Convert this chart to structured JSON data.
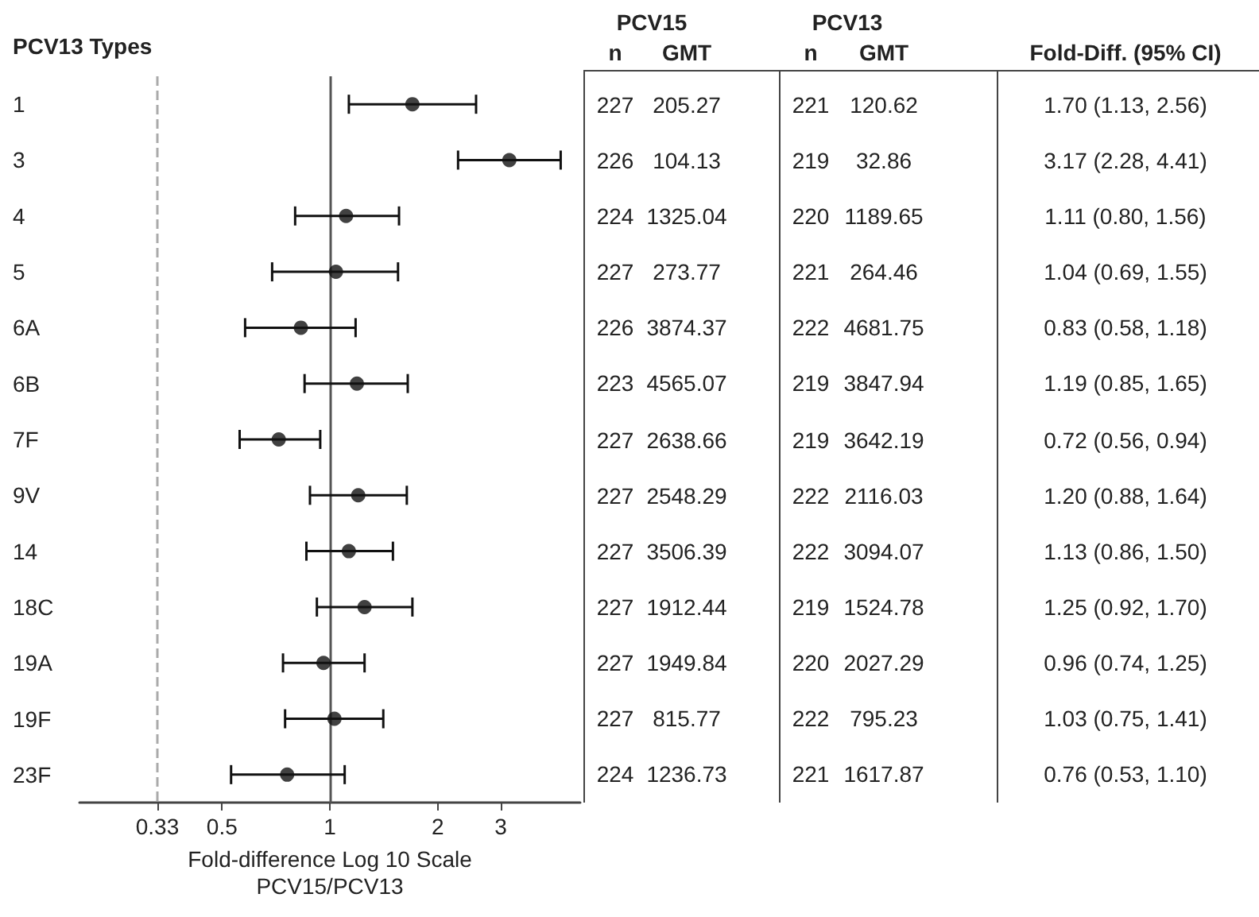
{
  "chart_data": {
    "type": "scatter",
    "orientation": "horizontal",
    "ylabel": "PCV13 Types",
    "xlabel": "Fold-difference Log 10 Scale\nPCV15/PCV13",
    "categories": [
      "1",
      "3",
      "4",
      "5",
      "6A",
      "6B",
      "7F",
      "9V",
      "14",
      "18C",
      "19A",
      "19F",
      "23F"
    ],
    "values": [
      1.7,
      3.17,
      1.11,
      1.04,
      0.83,
      1.19,
      0.72,
      1.2,
      1.13,
      1.25,
      0.96,
      1.03,
      0.76
    ],
    "errors": [
      [
        1.13,
        2.56
      ],
      [
        2.28,
        4.41
      ],
      [
        0.8,
        1.56
      ],
      [
        0.69,
        1.55
      ],
      [
        0.58,
        1.18
      ],
      [
        0.85,
        1.65
      ],
      [
        0.56,
        0.94
      ],
      [
        0.88,
        1.64
      ],
      [
        0.86,
        1.5
      ],
      [
        0.92,
        1.7
      ],
      [
        0.74,
        1.25
      ],
      [
        0.75,
        1.41
      ],
      [
        0.53,
        1.1
      ]
    ],
    "value_labels": [
      "1.70 (1.13, 2.56)",
      "3.17 (2.28, 4.41)",
      "1.11 (0.80, 1.56)",
      "1.04 (0.69, 1.55)",
      "0.83 (0.58, 1.18)",
      "1.19 (0.85, 1.65)",
      "0.72 (0.56, 0.94)",
      "1.20 (0.88, 1.64)",
      "1.13 (0.86, 1.50)",
      "1.25 (0.92, 1.70)",
      "0.96 (0.74, 1.25)",
      "1.03 (0.75, 1.41)",
      "0.76 (0.53, 1.10)"
    ],
    "color": "#111111",
    "marker": "circle",
    "log": "x",
    "grid": false,
    "xlim": [
      0.2,
      5
    ],
    "xticks": [
      0.33,
      0.5,
      1,
      2,
      3
    ],
    "ref_lines": [
      {
        "axis": "x",
        "value": 0.33,
        "color": "#aaaaaa",
        "line_style": "dashed"
      },
      {
        "axis": "x",
        "value": 1,
        "color": "#555555",
        "line_style": "solid"
      }
    ],
    "annotations": [
      "PCV15",
      "PCV13",
      "n",
      "GMT",
      "n",
      "GMT",
      "Fold-Diff. (95% CI)",
      "227",
      "205.27",
      "221",
      "120.62",
      "226",
      "104.13",
      "219",
      "32.86",
      "224",
      "1325.04",
      "220",
      "1189.65",
      "227",
      "273.77",
      "221",
      "264.46",
      "226",
      "3874.37",
      "222",
      "4681.75",
      "223",
      "4565.07",
      "219",
      "3847.94",
      "227",
      "2638.66",
      "219",
      "3642.19",
      "227",
      "2548.29",
      "222",
      "2116.03",
      "227",
      "3506.39",
      "222",
      "3094.07",
      "227",
      "1912.44",
      "219",
      "1524.78",
      "227",
      "1949.84",
      "220",
      "2027.29",
      "227",
      "815.77",
      "222",
      "795.23",
      "224",
      "1236.73",
      "221",
      "1617.87"
    ]
  }
}
